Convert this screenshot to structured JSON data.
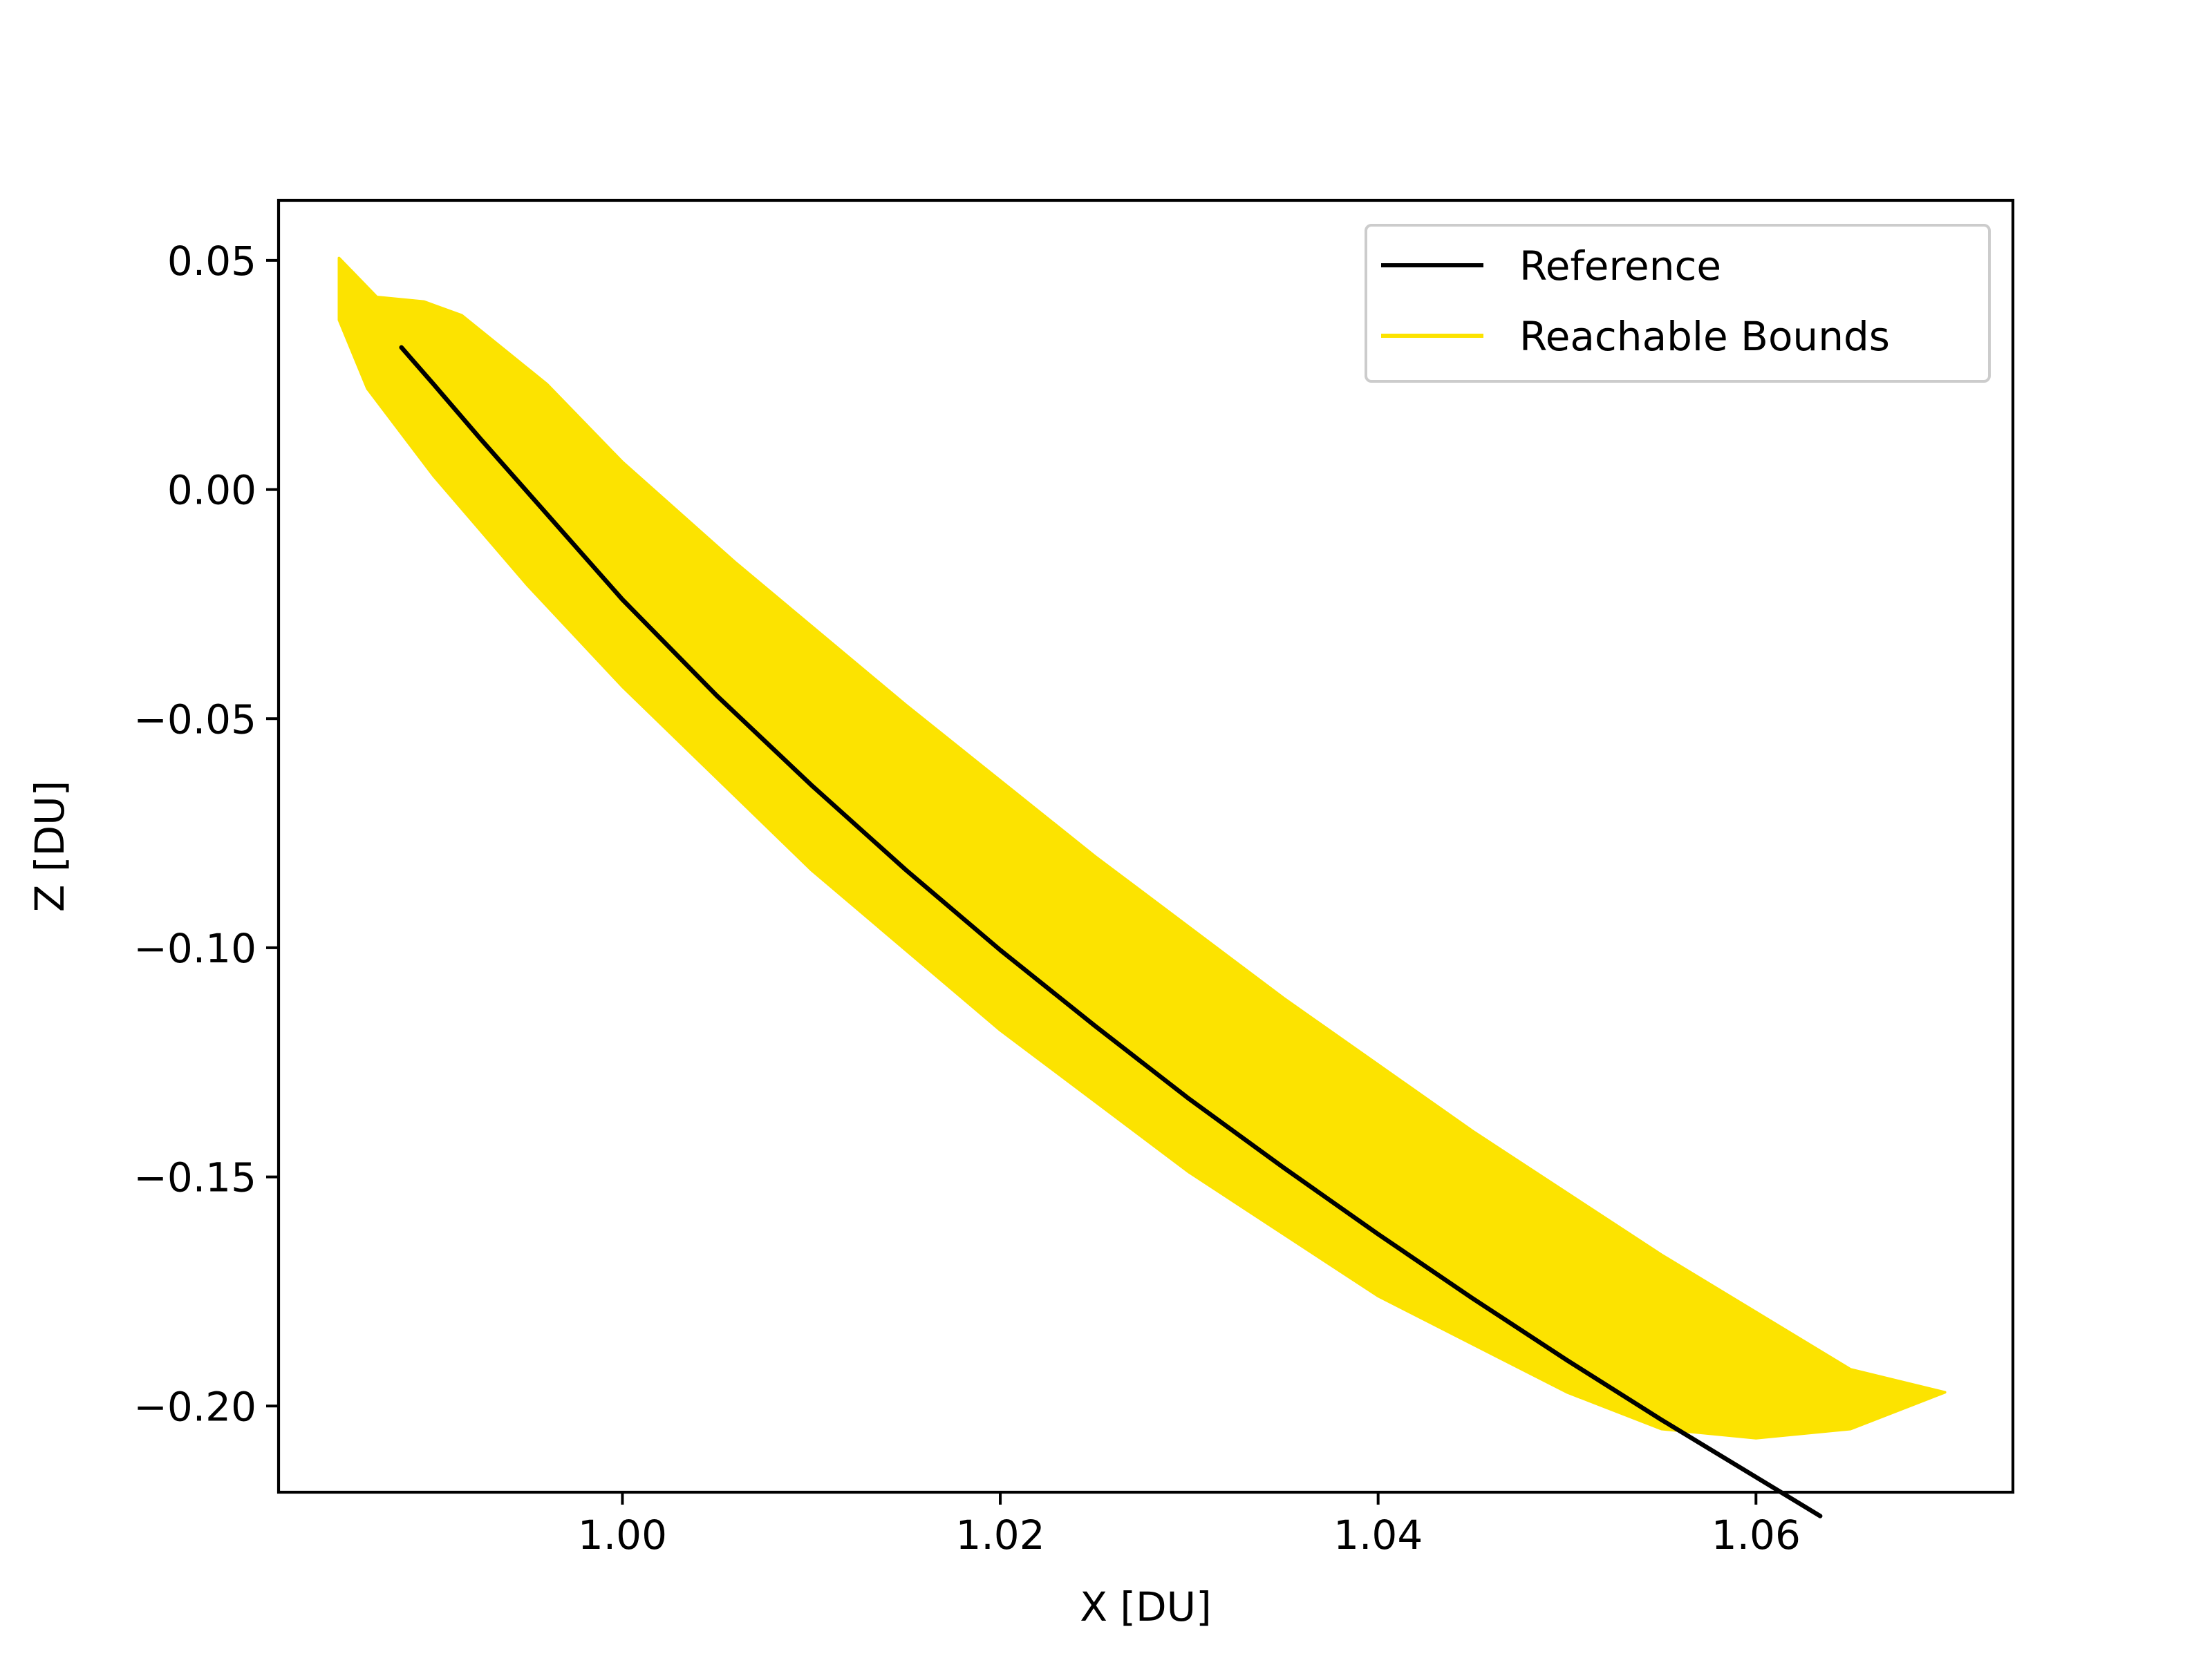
{
  "chart_data": {
    "type": "line",
    "title": "",
    "xlabel": "X [DU]",
    "ylabel": "Z [DU]",
    "xlim": [
      0.9818,
      1.0736
    ],
    "ylim": [
      -0.2188,
      0.0631
    ],
    "xticks": [
      1.0,
      1.02,
      1.04,
      1.06
    ],
    "xtick_labels": [
      "1.00",
      "1.02",
      "1.04",
      "1.06"
    ],
    "yticks": [
      0.05,
      0.0,
      -0.05,
      -0.1,
      -0.15,
      -0.2
    ],
    "ytick_labels": [
      "0.05",
      "0.00",
      "−0.05",
      "−0.10",
      "−0.15",
      "−0.20"
    ],
    "grid": false,
    "legend": {
      "placement": "top-right",
      "entries": [
        "Reference",
        "Reachable Bounds"
      ]
    },
    "colors": {
      "reference": "#000000",
      "reachable_bounds": "#fce300"
    },
    "series": [
      {
        "name": "Reference",
        "color": "#000000",
        "x": [
          0.9883,
          0.99,
          0.9925,
          0.9955,
          1.0,
          1.005,
          1.01,
          1.015,
          1.02,
          1.025,
          1.03,
          1.035,
          1.04,
          1.045,
          1.05,
          1.055,
          1.06,
          1.0634
        ],
        "y": [
          0.031,
          0.023,
          0.011,
          -0.003,
          -0.024,
          -0.045,
          -0.0645,
          -0.083,
          -0.1005,
          -0.117,
          -0.133,
          -0.148,
          -0.1625,
          -0.1765,
          -0.19,
          -0.203,
          -0.2155,
          -0.224
        ]
      },
      {
        "name": "Reachable Bounds",
        "color": "#fce300",
        "upper_edge": {
          "x": [
            0.985,
            0.987,
            0.9895,
            0.9915,
            0.996,
            1.0,
            1.006,
            1.015,
            1.025,
            1.035,
            1.045,
            1.055,
            1.065,
            1.07
          ],
          "y": [
            0.0505,
            0.042,
            0.041,
            0.038,
            0.023,
            0.006,
            -0.016,
            -0.047,
            -0.08,
            -0.111,
            -0.14,
            -0.167,
            -0.192,
            -0.197
          ]
        },
        "lower_edge": {
          "x": [
            0.985,
            0.9865,
            0.99,
            0.995,
            1.0,
            1.01,
            1.02,
            1.03,
            1.04,
            1.05,
            1.055,
            1.06,
            1.065,
            1.07
          ],
          "y": [
            0.037,
            0.022,
            0.003,
            -0.021,
            -0.043,
            -0.083,
            -0.118,
            -0.149,
            -0.176,
            -0.197,
            -0.205,
            -0.207,
            -0.205,
            -0.197
          ]
        }
      }
    ]
  }
}
